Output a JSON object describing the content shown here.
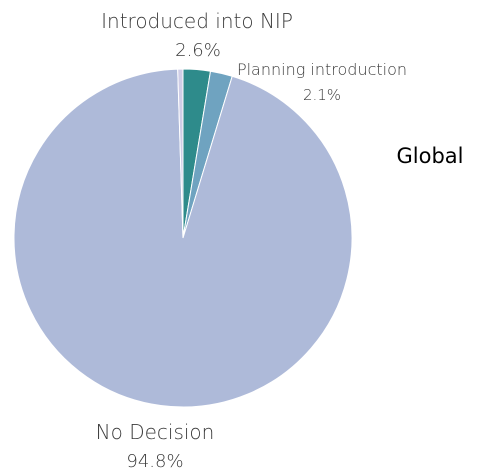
{
  "chart_data": {
    "type": "pie",
    "title": "Global",
    "slices": [
      {
        "label": "Introduced into NIP",
        "value": 2.6,
        "display": "2.6%",
        "color": "#2e8b8b"
      },
      {
        "label": "Planning introduction",
        "value": 2.1,
        "display": "2.1%",
        "color": "#6fa3c0"
      },
      {
        "label": "No Decision",
        "value": 94.8,
        "display": "94.8%",
        "color": "#aebad9"
      },
      {
        "label": "",
        "value": 0.5,
        "display": "",
        "color": "#cfcde6"
      }
    ]
  }
}
